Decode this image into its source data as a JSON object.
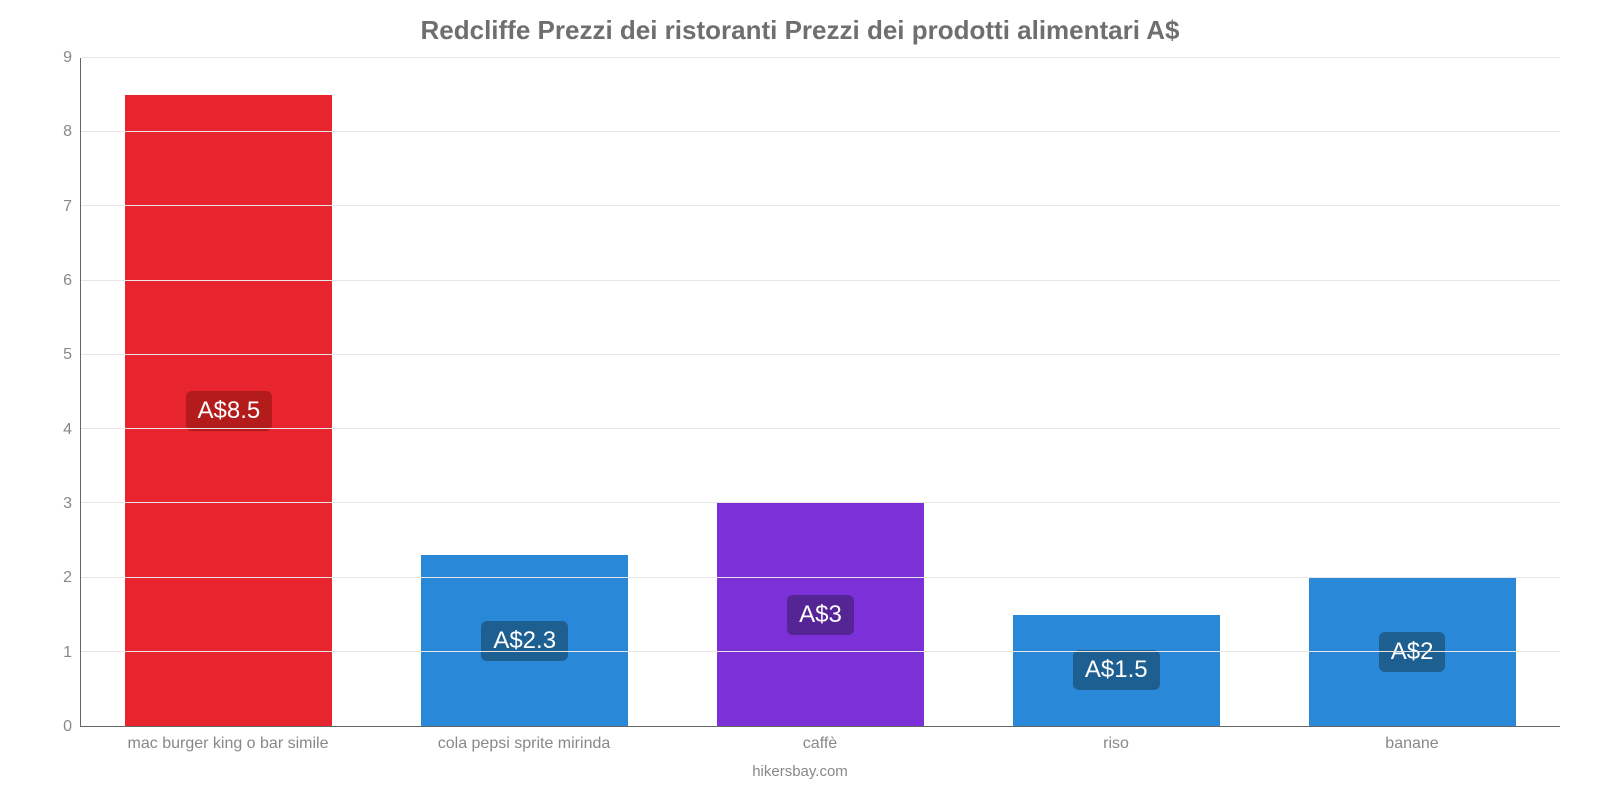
{
  "chart": {
    "type": "bar",
    "title": "Redcliffe Prezzi dei ristoranti Prezzi dei prodotti alimentari A$",
    "title_color": "#6f6f6f",
    "title_fontsize": 26,
    "background_color": "#ffffff",
    "axis_color": "#666666",
    "tick_color": "#888888",
    "label_fontsize": 16,
    "grid_color": "#e6e6e6",
    "ylim_min": 0,
    "ylim_max": 9,
    "ytick_step": 1,
    "yticks": [
      0,
      1,
      2,
      3,
      4,
      5,
      6,
      7,
      8,
      9
    ],
    "bar_width_pct": 70,
    "categories": [
      "mac burger king o bar simile",
      "cola pepsi sprite mirinda",
      "caffè",
      "riso",
      "banane"
    ],
    "values": [
      8.5,
      2.3,
      3,
      1.5,
      2
    ],
    "value_labels": [
      "A$8.5",
      "A$2.3",
      "A$3",
      "A$1.5",
      "A$2"
    ],
    "bar_colors": [
      "#e8252f",
      "#2989d8",
      "#7c30d8",
      "#2989d8",
      "#2989d8"
    ],
    "badge_colors": [
      "#b41b1b",
      "#1e5f92",
      "#552495",
      "#1e5f92",
      "#1e5f92"
    ],
    "badge_text_color": "#ffffff",
    "badge_fontsize": 24,
    "footer": "hikersbay.com",
    "footer_color": "#888888"
  }
}
